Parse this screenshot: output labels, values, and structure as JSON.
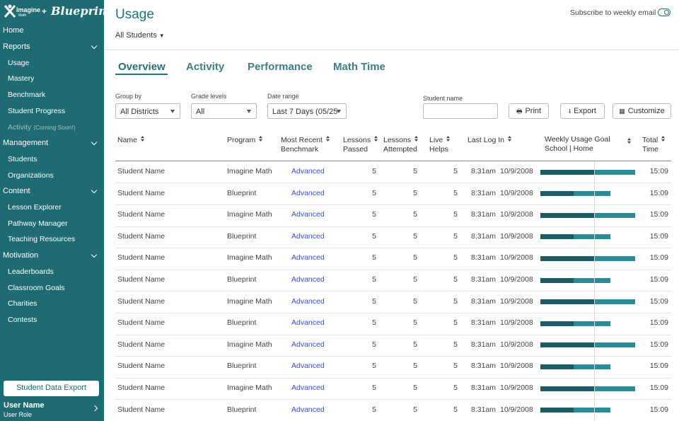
{
  "sidebar": {
    "logo": {
      "brand1": "Imagine",
      "brand1_sub": "Math",
      "plus": "+",
      "brand2": "Blueprint"
    },
    "home": "Home",
    "sections": [
      {
        "label": "Reports",
        "items": [
          {
            "label": "Usage"
          },
          {
            "label": "Mastery"
          },
          {
            "label": "Benchmark"
          },
          {
            "label": "Student Progress"
          },
          {
            "label": "Activity",
            "note": "(Coming Soon!)",
            "disabled": true
          }
        ]
      },
      {
        "label": "Management",
        "items": [
          {
            "label": "Students"
          },
          {
            "label": "Organizations"
          }
        ]
      },
      {
        "label": "Content",
        "items": [
          {
            "label": "Lesson Explorer"
          },
          {
            "label": "Pathway Manager"
          },
          {
            "label": "Teaching Resources"
          }
        ]
      },
      {
        "label": "Motivation",
        "items": [
          {
            "label": "Leaderboards"
          },
          {
            "label": "Classroom Goals"
          },
          {
            "label": "Charities"
          },
          {
            "label": "Contests"
          }
        ]
      }
    ],
    "export_button": "Student Data Export",
    "user": {
      "name": "User Name",
      "role": "User Role"
    }
  },
  "header": {
    "title": "Usage",
    "scope": "All Students",
    "subscribe": "Subscribe to weekly email"
  },
  "tabs": [
    "Overview",
    "Activity",
    "Performance",
    "Math Time"
  ],
  "filters": [
    {
      "label": "Group by",
      "value": "All Districts"
    },
    {
      "label": "Grade levels",
      "value": "All"
    },
    {
      "label": "Date range",
      "value": "Last 7 Days (05/25"
    }
  ],
  "student_name_label": "Student name",
  "buttons": [
    "Print",
    "Export",
    "Customize"
  ],
  "table": {
    "columns": [
      [
        "Name"
      ],
      [
        "Program"
      ],
      [
        "Most Recent",
        "Benchmark"
      ],
      [
        "Lessons",
        "Passed"
      ],
      [
        "Lessons",
        "Attempted"
      ],
      [
        "Live",
        "Helps"
      ],
      [
        "Last Log In"
      ],
      [
        "Weekly Usage Goal",
        "School | Home"
      ],
      [
        "Total",
        "Time"
      ]
    ],
    "goal": 100,
    "rows": [
      {
        "name": "Student Name",
        "program": "Imagine Math",
        "benchmark": "Advanced",
        "passed": 5,
        "attempted": 5,
        "helps": 5,
        "time": "8:31am",
        "date": "10/9/2008",
        "school": 100,
        "home": 76,
        "total": "15:09"
      },
      {
        "name": "Student Name",
        "program": "Blueprint",
        "benchmark": "Advanced",
        "passed": 5,
        "attempted": 5,
        "helps": 5,
        "time": "8:31am",
        "date": "10/9/2008",
        "school": 62,
        "home": 68,
        "total": "15:09"
      },
      {
        "name": "Student Name",
        "program": "Imagine Math",
        "benchmark": "Advanced",
        "passed": 5,
        "attempted": 5,
        "helps": 5,
        "time": "8:31am",
        "date": "10/9/2008",
        "school": 100,
        "home": 76,
        "total": "15:09"
      },
      {
        "name": "Student Name",
        "program": "Blueprint",
        "benchmark": "Advanced",
        "passed": 5,
        "attempted": 5,
        "helps": 5,
        "time": "8:31am",
        "date": "10/9/2008",
        "school": 62,
        "home": 68,
        "total": "15:09"
      },
      {
        "name": "Student Name",
        "program": "Imagine Math",
        "benchmark": "Advanced",
        "passed": 5,
        "attempted": 5,
        "helps": 5,
        "time": "8:31am",
        "date": "10/9/2008",
        "school": 100,
        "home": 76,
        "total": "15:09"
      },
      {
        "name": "Student Name",
        "program": "Blueprint",
        "benchmark": "Advanced",
        "passed": 5,
        "attempted": 5,
        "helps": 5,
        "time": "8:31am",
        "date": "10/9/2008",
        "school": 62,
        "home": 68,
        "total": "15:09"
      },
      {
        "name": "Student Name",
        "program": "Imagine Math",
        "benchmark": "Advanced",
        "passed": 5,
        "attempted": 5,
        "helps": 5,
        "time": "8:31am",
        "date": "10/9/2008",
        "school": 100,
        "home": 76,
        "total": "15:09"
      },
      {
        "name": "Student Name",
        "program": "Blueprint",
        "benchmark": "Advanced",
        "passed": 5,
        "attempted": 5,
        "helps": 5,
        "time": "8:31am",
        "date": "10/9/2008",
        "school": 62,
        "home": 68,
        "total": "15:09"
      },
      {
        "name": "Student Name",
        "program": "Imagine Math",
        "benchmark": "Advanced",
        "passed": 5,
        "attempted": 5,
        "helps": 5,
        "time": "8:31am",
        "date": "10/9/2008",
        "school": 100,
        "home": 76,
        "total": "15:09"
      },
      {
        "name": "Student Name",
        "program": "Blueprint",
        "benchmark": "Advanced",
        "passed": 5,
        "attempted": 5,
        "helps": 5,
        "time": "8:31am",
        "date": "10/9/2008",
        "school": 62,
        "home": 68,
        "total": "15:09"
      },
      {
        "name": "Student Name",
        "program": "Imagine Math",
        "benchmark": "Advanced",
        "passed": 5,
        "attempted": 5,
        "helps": 5,
        "time": "8:31am",
        "date": "10/9/2008",
        "school": 100,
        "home": 76,
        "total": "15:09"
      },
      {
        "name": "Student Name",
        "program": "Blueprint",
        "benchmark": "Advanced",
        "passed": 5,
        "attempted": 5,
        "helps": 5,
        "time": "8:31am",
        "date": "10/9/2008",
        "school": 62,
        "home": 68,
        "total": "15:09"
      }
    ]
  }
}
